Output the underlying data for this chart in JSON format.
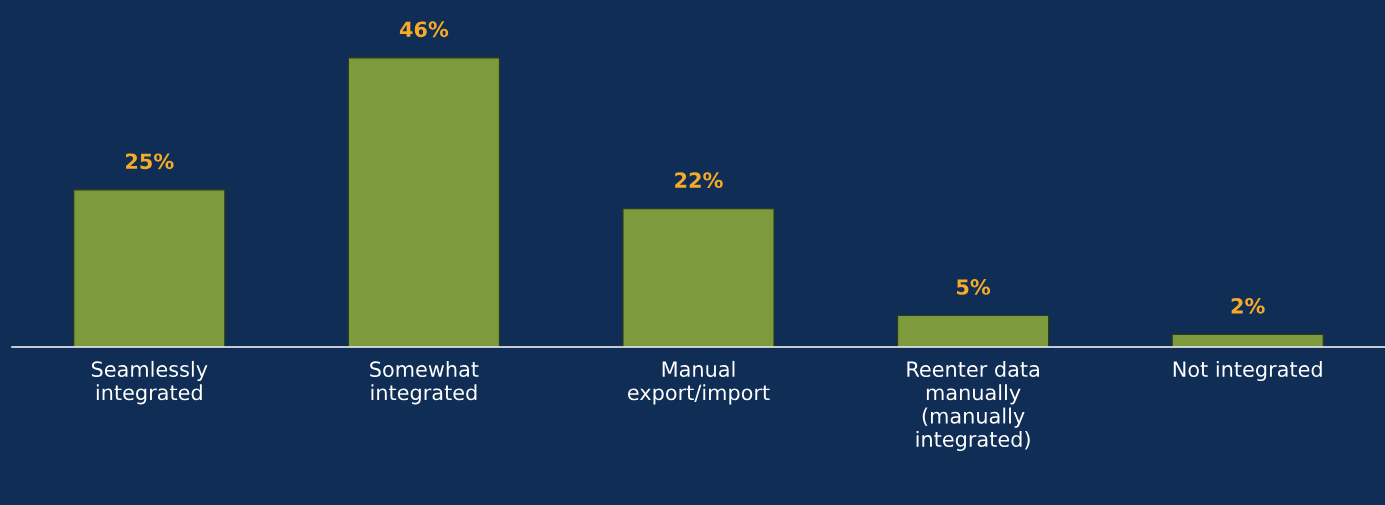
{
  "chart_data": {
    "type": "bar",
    "categories": [
      "Seamlessly\nintegrated",
      "Somewhat\nintegrated",
      "Manual\nexport/import",
      "Reenter data\nmanually\n(manually\nintegrated)",
      "Not integrated"
    ],
    "values": [
      25,
      46,
      22,
      5,
      2
    ],
    "value_labels": [
      "25%",
      "46%",
      "22%",
      "5%",
      "2%"
    ],
    "color": "#7d9a3c",
    "grid": false,
    "legend": false
  }
}
